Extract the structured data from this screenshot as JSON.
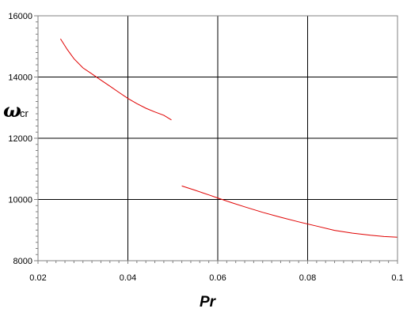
{
  "chart_data": {
    "type": "line",
    "title": "",
    "xlabel": "Pr",
    "ylabel": {
      "main": "ω",
      "sub": "cr"
    },
    "xlim": [
      0.02,
      0.1
    ],
    "ylim": [
      8000,
      16000
    ],
    "grid": true,
    "x_ticks": [
      "0.02",
      "0.04",
      "0.06",
      "0.08",
      "0.1"
    ],
    "y_ticks": [
      "8000",
      "10000",
      "12000",
      "14000",
      "16000"
    ],
    "colors": {
      "series": "#e00000",
      "grid": "#000000",
      "frame": "#808080"
    },
    "series": [
      {
        "points": [
          [
            0.025,
            15250
          ],
          [
            0.0265,
            14900
          ],
          [
            0.028,
            14600
          ],
          [
            0.03,
            14300
          ],
          [
            0.032,
            14100
          ],
          [
            0.034,
            13900
          ],
          [
            0.036,
            13700
          ],
          [
            0.038,
            13500
          ],
          [
            0.04,
            13300
          ],
          [
            0.042,
            13130
          ],
          [
            0.044,
            12980
          ],
          [
            0.046,
            12860
          ],
          [
            0.048,
            12750
          ],
          [
            0.0497,
            12600
          ]
        ]
      },
      {
        "points": [
          [
            0.052,
            10440
          ],
          [
            0.055,
            10300
          ],
          [
            0.058,
            10150
          ],
          [
            0.06,
            10050
          ],
          [
            0.063,
            9900
          ],
          [
            0.066,
            9760
          ],
          [
            0.07,
            9580
          ],
          [
            0.074,
            9420
          ],
          [
            0.078,
            9270
          ],
          [
            0.082,
            9130
          ],
          [
            0.086,
            8990
          ],
          [
            0.09,
            8900
          ],
          [
            0.094,
            8830
          ],
          [
            0.097,
            8790
          ],
          [
            0.1,
            8770
          ]
        ]
      }
    ]
  }
}
